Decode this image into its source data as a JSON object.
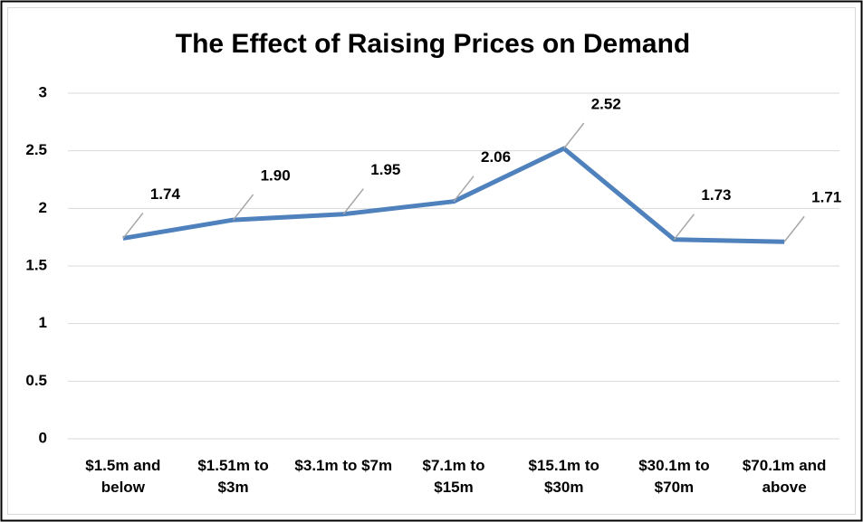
{
  "chart_data": {
    "type": "line",
    "title": "The Effect of Raising Prices on Demand",
    "categories": [
      "$1.5m and below",
      "$1.51m to $3m",
      "$3.1m to $7m",
      "$7.1m to $15m",
      "$15.1m to $30m",
      "$30.1m to $70m",
      "$70.1m and above"
    ],
    "values": [
      1.74,
      1.9,
      1.95,
      2.06,
      2.52,
      1.73,
      1.71
    ],
    "value_labels": [
      "1.74",
      "1.90",
      "1.95",
      "2.06",
      "2.52",
      "1.73",
      "1.71"
    ],
    "color": "#4f81bd",
    "ylim": [
      0,
      3
    ],
    "yticks": [
      0,
      0.5,
      1,
      1.5,
      2,
      2.5,
      3
    ],
    "grid": true
  }
}
